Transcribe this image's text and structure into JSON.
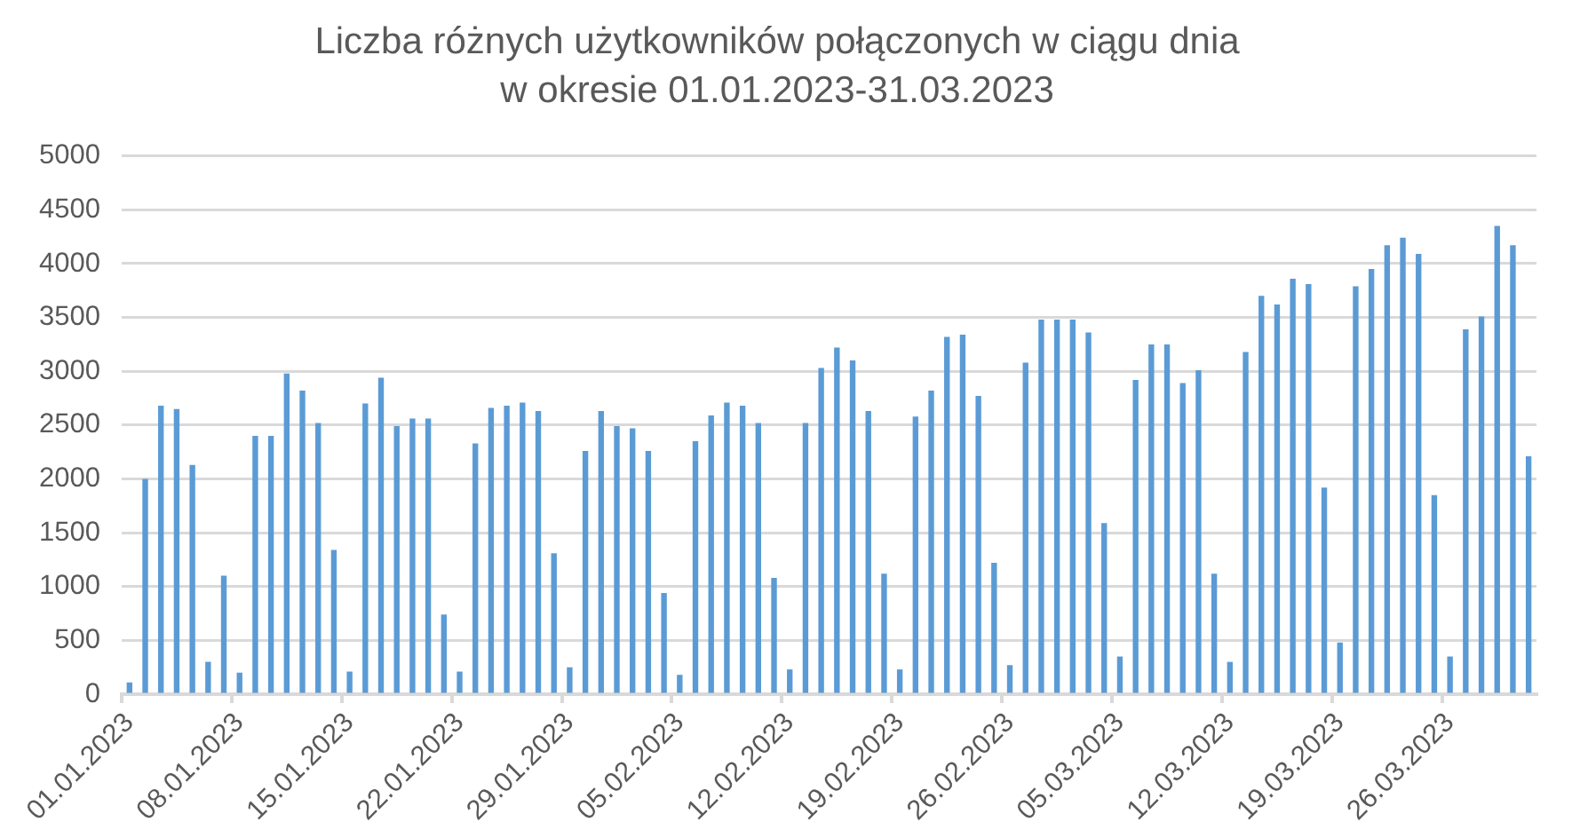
{
  "chart_data": {
    "type": "bar",
    "title": "Liczba różnych użytkowników połączonych w ciągu dnia\nw okresie 01.01.2023-31.03.2023",
    "categories": [
      "01.01.2023",
      null,
      null,
      null,
      null,
      null,
      null,
      "08.01.2023",
      null,
      null,
      null,
      null,
      null,
      null,
      "15.01.2023",
      null,
      null,
      null,
      null,
      null,
      null,
      "22.01.2023",
      null,
      null,
      null,
      null,
      null,
      null,
      "29.01.2023",
      null,
      null,
      null,
      null,
      null,
      null,
      "05.02.2023",
      null,
      null,
      null,
      null,
      null,
      null,
      "12.02.2023",
      null,
      null,
      null,
      null,
      null,
      null,
      "19.02.2023",
      null,
      null,
      null,
      null,
      null,
      null,
      "26.02.2023",
      null,
      null,
      null,
      null,
      null,
      null,
      "05.03.2023",
      null,
      null,
      null,
      null,
      null,
      null,
      "12.03.2023",
      null,
      null,
      null,
      null,
      null,
      null,
      "19.03.2023",
      null,
      null,
      null,
      null,
      null,
      null,
      "26.03.2023",
      null,
      null,
      null,
      null,
      null
    ],
    "values": [
      110,
      2000,
      2680,
      2650,
      2130,
      300,
      1100,
      200,
      2400,
      2400,
      2980,
      2820,
      2520,
      1340,
      210,
      2700,
      2940,
      2490,
      2560,
      2560,
      740,
      210,
      2330,
      2660,
      2680,
      2710,
      2630,
      1310,
      250,
      2260,
      2630,
      2490,
      2470,
      2260,
      940,
      180,
      2350,
      2590,
      2710,
      2680,
      2520,
      1080,
      230,
      2520,
      3030,
      3220,
      3100,
      2630,
      1120,
      230,
      2580,
      2820,
      3320,
      3340,
      2770,
      1220,
      270,
      3080,
      3480,
      3480,
      3480,
      3360,
      1590,
      350,
      2920,
      3250,
      3250,
      2890,
      3010,
      1120,
      300,
      3180,
      3700,
      3620,
      3860,
      3810,
      1920,
      480,
      3790,
      3950,
      4170,
      4240,
      4090,
      1850,
      350,
      3390,
      3510,
      4350,
      4170,
      2210
    ],
    "color": "#5b9bd5",
    "ylim": [
      0,
      5000
    ],
    "yticks": [
      0,
      500,
      1000,
      1500,
      2000,
      2500,
      3000,
      3500,
      4000,
      4500,
      5000
    ],
    "grid": "y"
  }
}
